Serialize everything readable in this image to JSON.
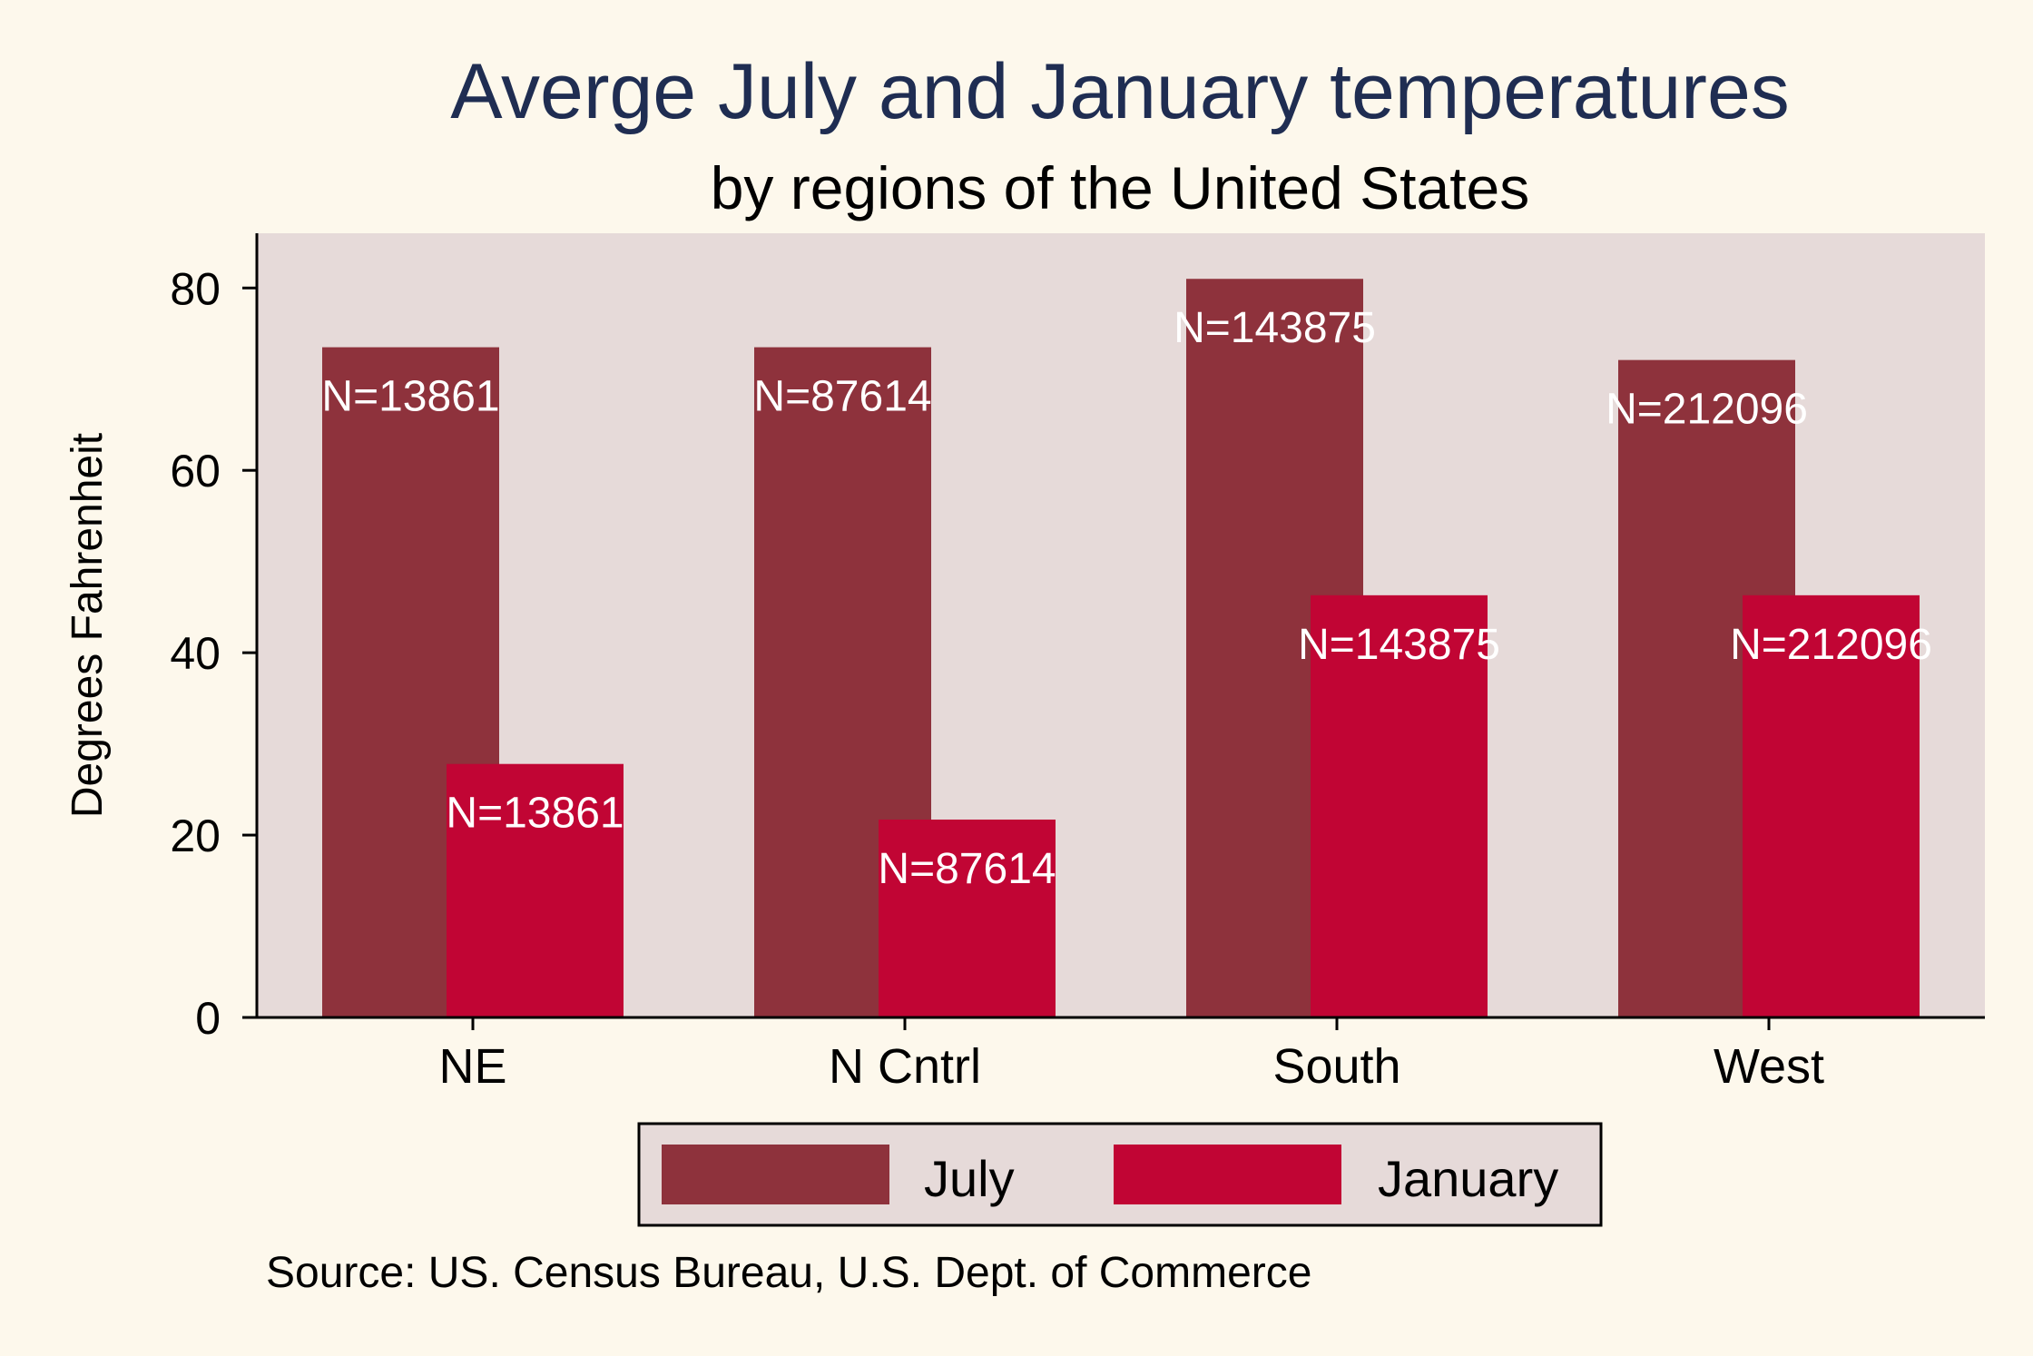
{
  "chart_data": {
    "type": "bar",
    "title": "Averge July and January temperatures",
    "subtitle": "by regions of the United States",
    "ylabel": "Degrees Fahrenheit",
    "xlabel": "",
    "ylim": [
      0,
      86
    ],
    "yticks": [
      0,
      20,
      40,
      60,
      80
    ],
    "categories": [
      "NE",
      "N Cntrl",
      "South",
      "West"
    ],
    "series": [
      {
        "name": "July",
        "color": "#8e323c",
        "values": [
          73.5,
          73.5,
          81.0,
          72.1
        ],
        "labels": [
          "N=13861",
          "N=87614",
          "N=143875",
          "N=212096"
        ]
      },
      {
        "name": "January",
        "color": "#c10534",
        "values": [
          27.8,
          21.7,
          46.3,
          46.3
        ],
        "labels": [
          "N=13861",
          "N=87614",
          "N=143875",
          "N=212096"
        ]
      }
    ],
    "grid": false,
    "legend": "bottom",
    "note": "Source: US. Census Bureau, U.S. Dept. of Commerce",
    "colors": {
      "background": "#fdf8ec",
      "plot_background": "#e6dad9",
      "title": "#1f2d52"
    }
  }
}
